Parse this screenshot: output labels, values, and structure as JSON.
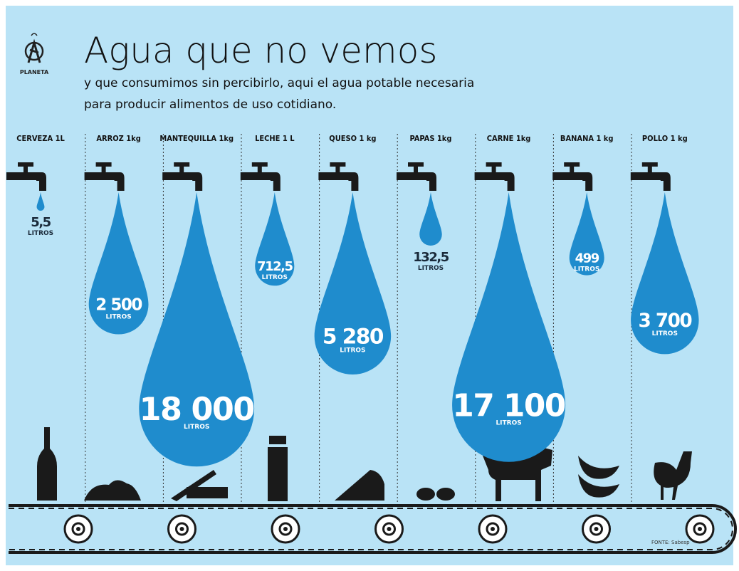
{
  "chart_data": {
    "type": "drop",
    "title": "Agua que no vemos",
    "subtitle": [
      "y que consumimos sin percibirlo, aqui el agua potable necesaria",
      "para producir alimentos de uso cotidiano."
    ],
    "logo": "PLANETA",
    "source": "FONTE: Sabesp",
    "unit_label": "LITROS",
    "categories": [
      "CERVEZA 1L",
      "ARROZ 1kg",
      "MANTEQUILLA 1kg",
      "LECHE 1 L",
      "QUESO 1 kg",
      "PAPAS 1kg",
      "CARNE 1kg",
      "BANANA 1 kg",
      "POLLO 1 kg"
    ],
    "values": [
      5.5,
      2500,
      18000,
      712.5,
      5280,
      132.5,
      17100,
      499,
      3700
    ],
    "value_labels": [
      "5,5",
      "2 500",
      "18 000",
      "712,5",
      "5 280",
      "132,5",
      "17 100",
      "499",
      "3 700"
    ],
    "color": "#1f8ccd",
    "background": "#b9e3f6"
  }
}
